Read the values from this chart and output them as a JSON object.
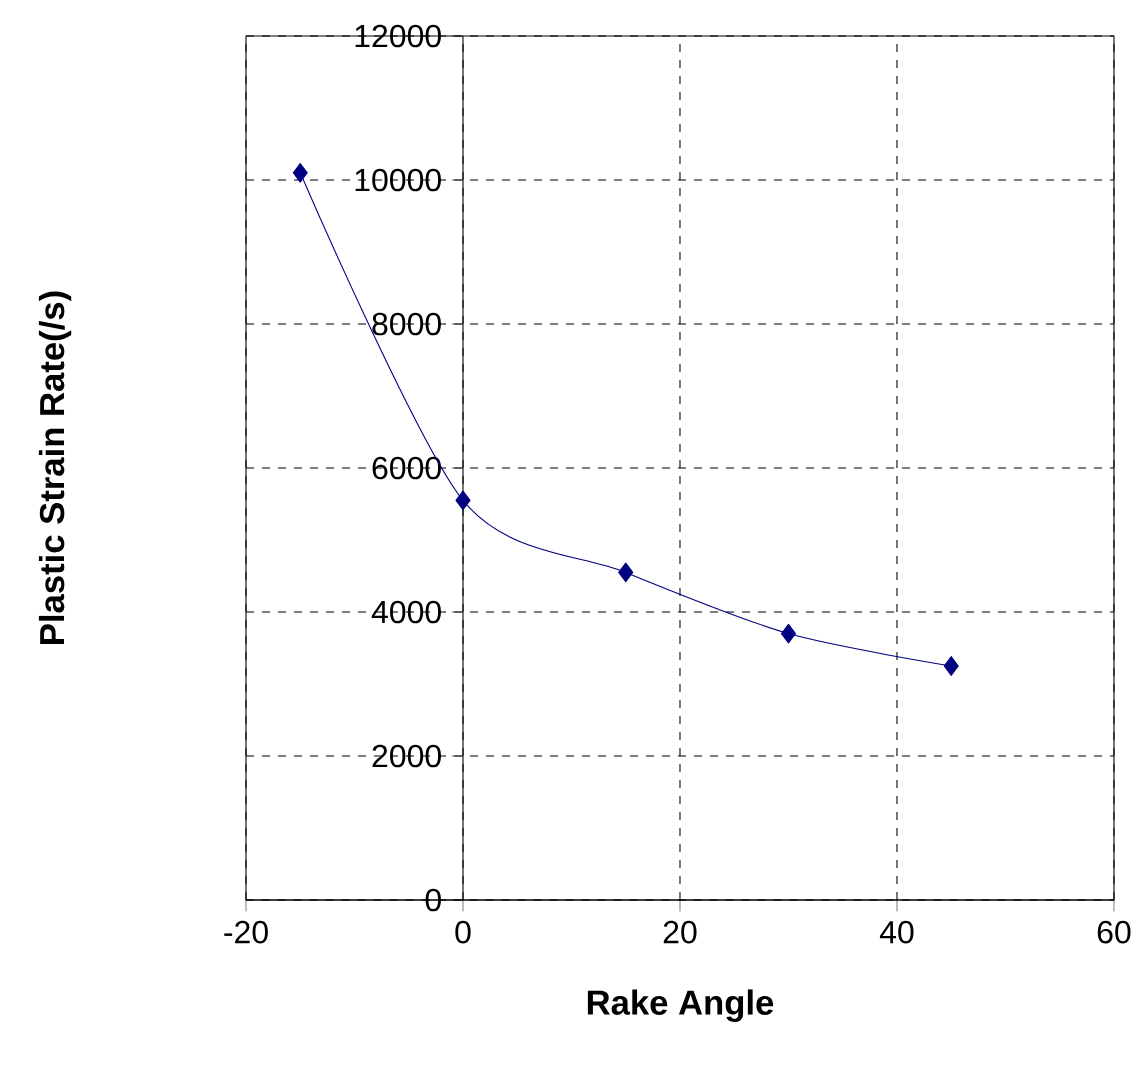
{
  "chart_data": {
    "type": "line",
    "xlabel": "Rake Angle",
    "ylabel": "Plastic Strain Rate(/s)",
    "x": [
      -15,
      0,
      15,
      30,
      45
    ],
    "series": [
      {
        "color": "#000080",
        "values": [
          10100,
          5550,
          4550,
          3700,
          3250
        ]
      }
    ],
    "xlim": [
      -20,
      60
    ],
    "xticks": [
      -20,
      0,
      20,
      40,
      60
    ],
    "ylim": [
      0,
      12000
    ],
    "yticks": [
      0,
      2000,
      4000,
      6000,
      8000,
      10000,
      12000
    ],
    "grid": true,
    "marker": "diamond",
    "line_style": "solid"
  }
}
